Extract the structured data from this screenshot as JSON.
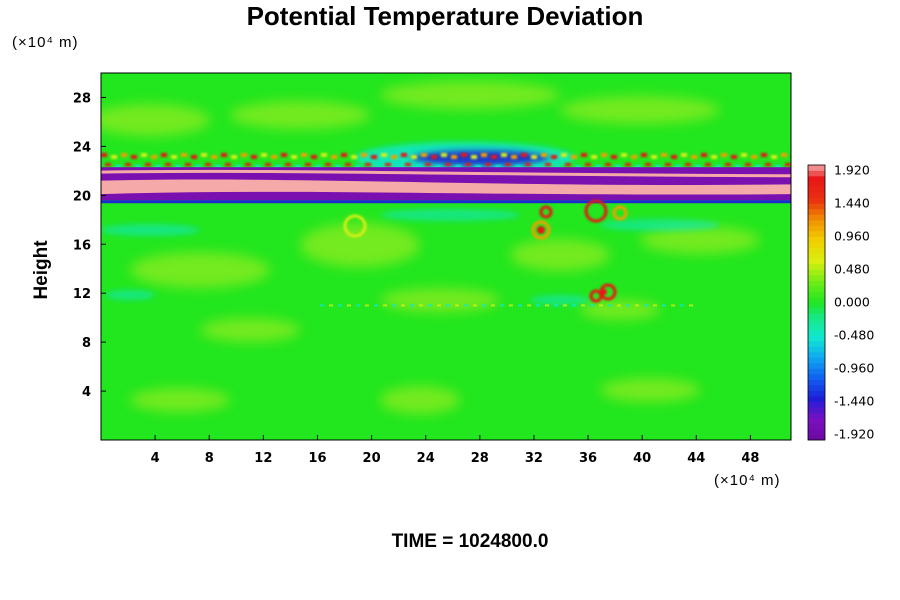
{
  "chart_data": {
    "type": "heatmap",
    "title": "Potential Temperature Deviation",
    "ylabel": "Height",
    "xunit": "(×10⁴ m)",
    "yunit": "(×10⁴ m)",
    "xlim": [
      0,
      51
    ],
    "ylim": [
      0,
      30
    ],
    "xticks": [
      "4",
      "8",
      "12",
      "16",
      "20",
      "24",
      "28",
      "32",
      "36",
      "40",
      "44",
      "48"
    ],
    "yticks": [
      "4",
      "8",
      "12",
      "16",
      "20",
      "24",
      "28"
    ],
    "colorbar": {
      "range": [
        -2.0,
        2.0
      ],
      "labels": [
        "1.920",
        "1.440",
        "0.960",
        "0.480",
        "0.000",
        "-0.480",
        "-0.960",
        "-1.440",
        "-1.920"
      ]
    },
    "footer": "TIME = 1024800.0"
  },
  "colors": {
    "field_base": "#22e61e",
    "band_pink": "#f5a9a9",
    "band_purple": "#7a10b0",
    "band_blue": "#1e2ad0",
    "cyan": "#10e8d0",
    "yellow": "#d6ef12",
    "orange": "#f0a000",
    "red": "#e81818"
  }
}
